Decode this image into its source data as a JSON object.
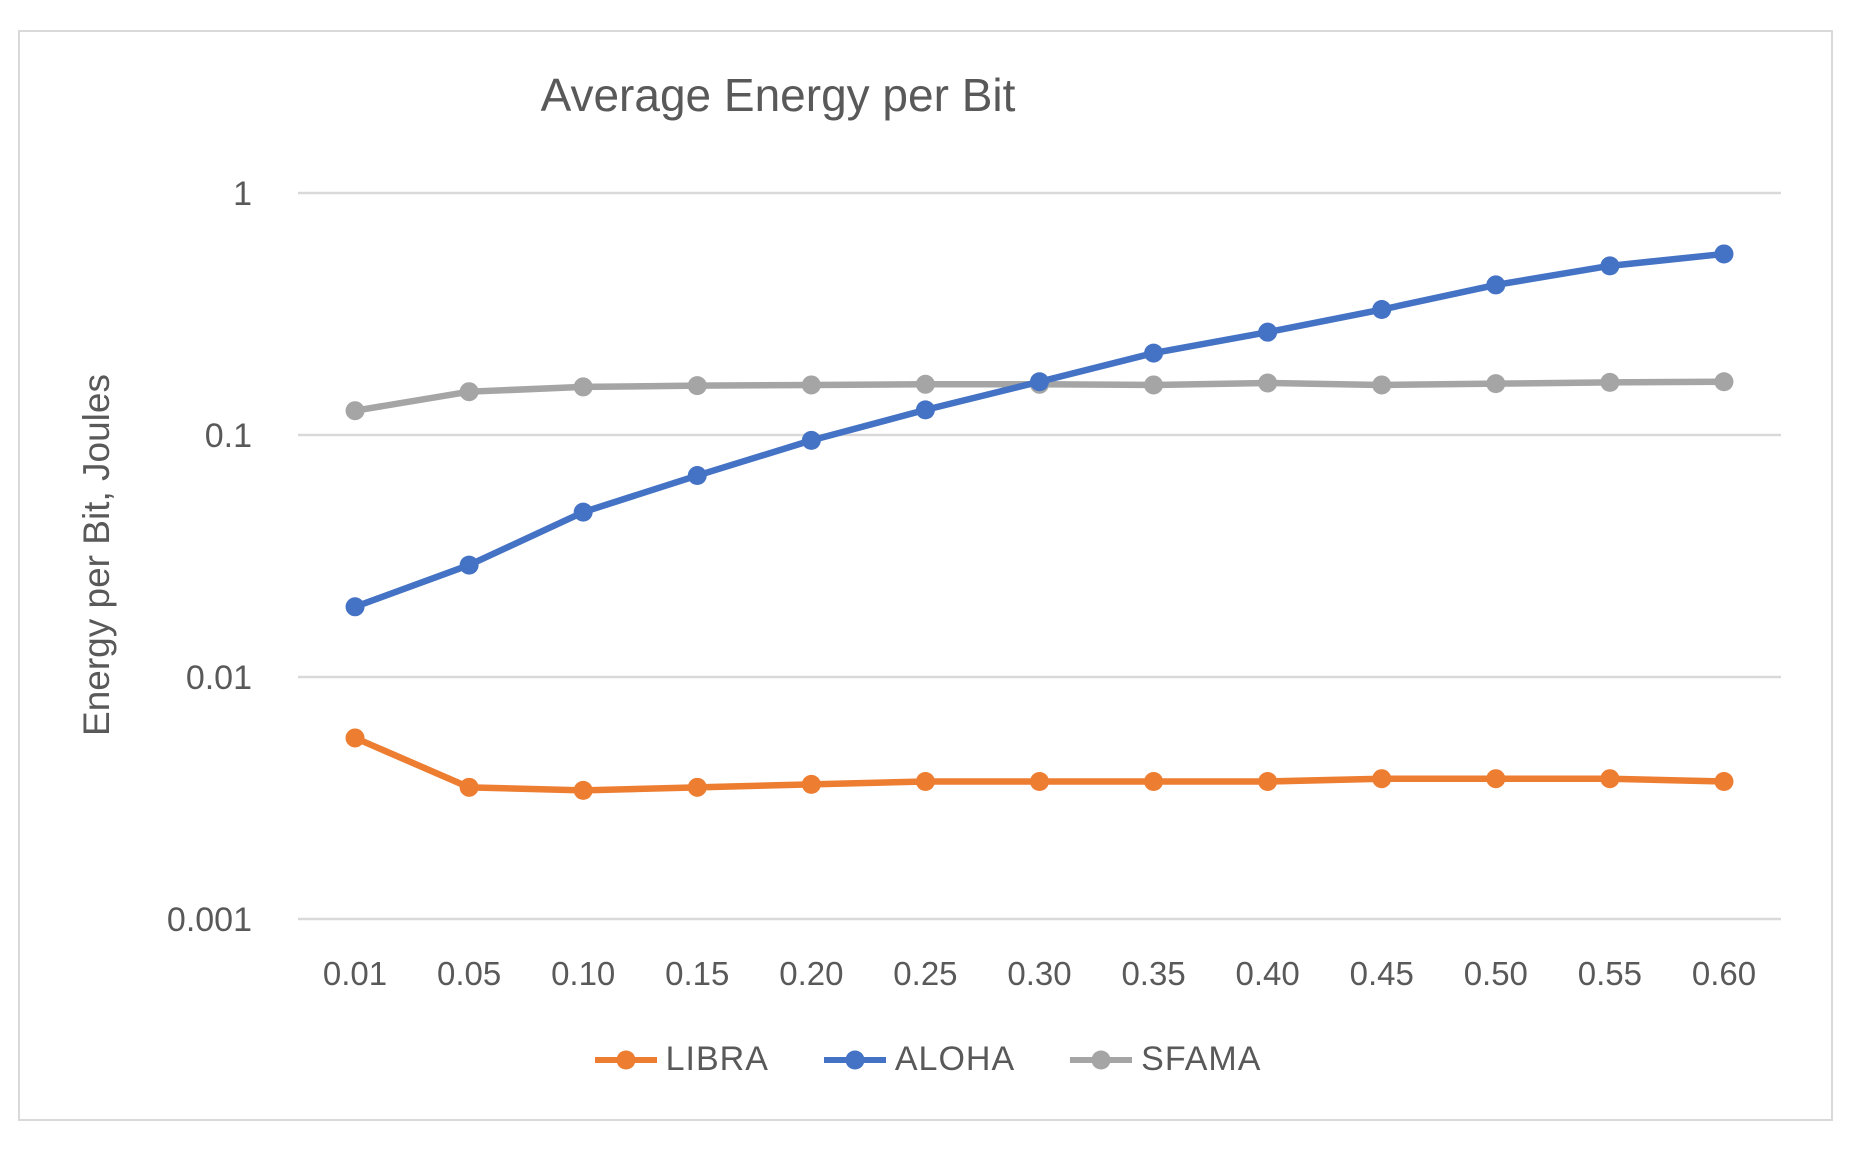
{
  "style": {
    "text_color": "#595959",
    "gridline_color": "#d9d9d9",
    "border_color": "#d9d9d9",
    "background": "#ffffff"
  },
  "legend": {
    "position": "bottom",
    "entries": [
      "LIBRA",
      "ALOHA",
      "SFAMA"
    ]
  },
  "chart_data": {
    "type": "line",
    "title": "Average Energy per Bit",
    "xlabel": "",
    "ylabel": "Energy per Bit, Joules",
    "y_scale": "log",
    "ylim": [
      0.001,
      1
    ],
    "y_tick_values": [
      1,
      0.1,
      0.01,
      0.001
    ],
    "y_tick_labels": [
      "1",
      "0.1",
      "0.01",
      "0.001"
    ],
    "grid": "horizontal",
    "legend_position": "bottom",
    "marker": "circle",
    "categories": [
      "0.01",
      "0.05",
      "0.10",
      "0.15",
      "0.20",
      "0.25",
      "0.30",
      "0.35",
      "0.40",
      "0.45",
      "0.50",
      "0.55",
      "0.60"
    ],
    "series": [
      {
        "name": "LIBRA",
        "color": "#ED7D31",
        "values": [
          0.0056,
          0.0035,
          0.0034,
          0.0035,
          0.0036,
          0.0037,
          0.0037,
          0.0037,
          0.0037,
          0.0038,
          0.0038,
          0.0038,
          0.0037
        ]
      },
      {
        "name": "ALOHA",
        "color": "#4472C4",
        "values": [
          0.0195,
          0.029,
          0.048,
          0.068,
          0.095,
          0.127,
          0.166,
          0.218,
          0.266,
          0.33,
          0.417,
          0.5,
          0.56
        ]
      },
      {
        "name": "SFAMA",
        "color": "#A5A5A5",
        "values": [
          0.126,
          0.151,
          0.158,
          0.16,
          0.161,
          0.162,
          0.162,
          0.161,
          0.164,
          0.161,
          0.163,
          0.165,
          0.166
        ]
      }
    ]
  }
}
